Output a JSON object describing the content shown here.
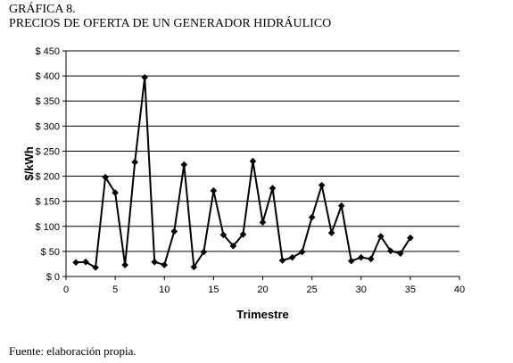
{
  "figure": {
    "label": "GRÁFICA 8.",
    "title": "PRECIOS DE OFERTA DE UN GENERADOR HIDRÁULICO",
    "source": "Fuente: elaboración propia."
  },
  "chart_data": {
    "type": "line",
    "xlabel": "Trimestre",
    "ylabel": "$/kWh",
    "xlim": [
      0,
      40
    ],
    "ylim": [
      0,
      450
    ],
    "x_ticks": [
      0,
      5,
      10,
      15,
      20,
      25,
      30,
      35,
      40
    ],
    "y_ticks": [
      0,
      50,
      100,
      150,
      200,
      250,
      300,
      350,
      400,
      450
    ],
    "y_tick_labels": [
      "$ 0",
      "$ 50",
      "$ 100",
      "$ 150",
      "$ 200",
      "$ 250",
      "$ 300",
      "$ 350",
      "$ 400",
      "$ 450"
    ],
    "grid": "horizontal",
    "legend": "none",
    "marker": "diamond",
    "color": "#000000",
    "series": [
      {
        "x": [
          1,
          2,
          3,
          4,
          5,
          6,
          7,
          8,
          9,
          10,
          11,
          12,
          13,
          14,
          15,
          16,
          17,
          18,
          19,
          20,
          21,
          22,
          23,
          24,
          25,
          26,
          27,
          28,
          29,
          30,
          31,
          32,
          33,
          34,
          35
        ],
        "values": [
          28,
          29,
          18,
          198,
          167,
          23,
          228,
          397,
          29,
          23,
          90,
          223,
          19,
          49,
          171,
          83,
          61,
          84,
          230,
          108,
          176,
          32,
          38,
          49,
          118,
          182,
          87,
          141,
          31,
          38,
          35,
          80,
          51,
          46,
          77
        ]
      }
    ]
  }
}
